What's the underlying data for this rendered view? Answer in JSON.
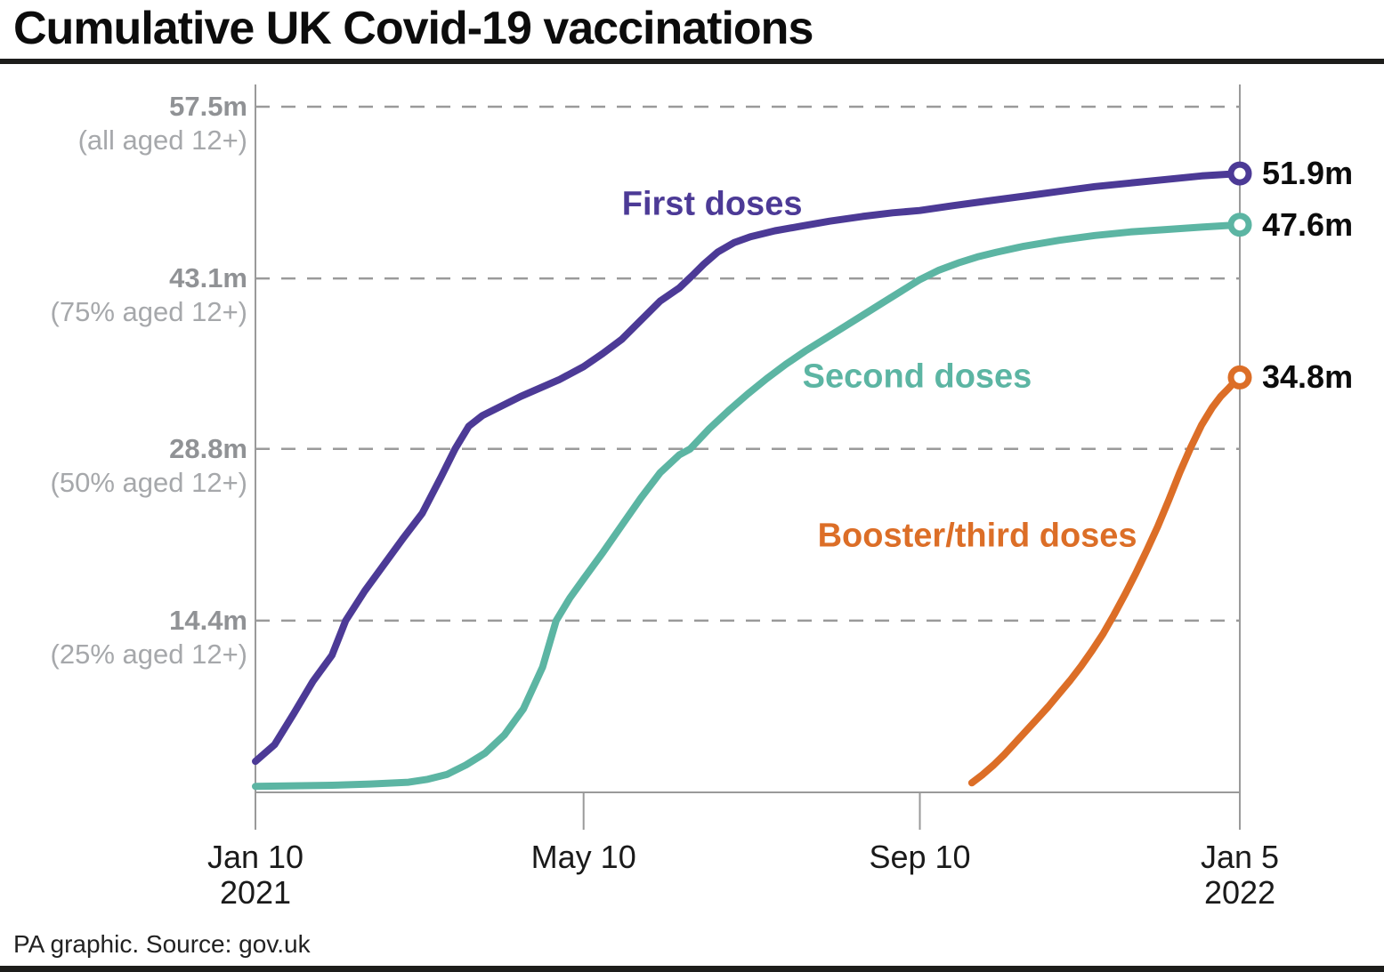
{
  "title": "Cumulative UK Covid-19 vaccinations",
  "footer": {
    "source_line": "PA graphic. Source: gov.uk"
  },
  "colors": {
    "first_doses": "#4c3a96",
    "second_doses": "#5cb5a3",
    "booster_doses": "#dc6e27",
    "grid_gray": "#9a9a9a",
    "label_gray": "#909295",
    "text_black": "#0c0c0c"
  },
  "chart_data": {
    "type": "line",
    "title": "Cumulative UK Covid-19 vaccinations",
    "xlabel": "",
    "ylabel": "",
    "x_axis": {
      "unit": "days since 2021-01-10",
      "max_day": 360,
      "ticks": [
        {
          "day": 0,
          "label": "Jan 10",
          "sublabel": "2021"
        },
        {
          "day": 120,
          "label": "May 10",
          "sublabel": ""
        },
        {
          "day": 243,
          "label": "Sep 10",
          "sublabel": ""
        },
        {
          "day": 360,
          "label": "Jan 5",
          "sublabel": "2022"
        }
      ]
    },
    "y_axis": {
      "unit": "millions of doses",
      "max": 57.5,
      "grid": "dashed",
      "gridlines": [
        {
          "value": 57.5,
          "label": "57.5m",
          "sublabel": "(all aged 12+)"
        },
        {
          "value": 43.1,
          "label": "43.1m",
          "sublabel": "(75% aged 12+)"
        },
        {
          "value": 28.8,
          "label": "28.8m",
          "sublabel": "(50% aged 12+)"
        },
        {
          "value": 14.4,
          "label": "14.4m",
          "sublabel": "(25% aged 12+)"
        }
      ]
    },
    "legend": "inline-labels",
    "series": [
      {
        "id": "first-doses",
        "label": "First doses",
        "color": "#4c3a96",
        "end_label": "51.9m",
        "final_value": 51.9,
        "label_anchor": {
          "day": 167,
          "value": 49.3
        },
        "points": [
          [
            0,
            2.6
          ],
          [
            7,
            4.0
          ],
          [
            14,
            6.6
          ],
          [
            21,
            9.3
          ],
          [
            28,
            11.5
          ],
          [
            33,
            14.4
          ],
          [
            40,
            16.9
          ],
          [
            47,
            19.1
          ],
          [
            54,
            21.3
          ],
          [
            61,
            23.4
          ],
          [
            68,
            26.5
          ],
          [
            73,
            28.8
          ],
          [
            78,
            30.7
          ],
          [
            83,
            31.6
          ],
          [
            90,
            32.4
          ],
          [
            97,
            33.2
          ],
          [
            104,
            33.9
          ],
          [
            111,
            34.6
          ],
          [
            120,
            35.7
          ],
          [
            127,
            36.8
          ],
          [
            134,
            38.0
          ],
          [
            141,
            39.6
          ],
          [
            148,
            41.2
          ],
          [
            155,
            42.3
          ],
          [
            160,
            43.4
          ],
          [
            164,
            44.3
          ],
          [
            169,
            45.3
          ],
          [
            175,
            46.1
          ],
          [
            181,
            46.6
          ],
          [
            190,
            47.1
          ],
          [
            200,
            47.5
          ],
          [
            210,
            47.9
          ],
          [
            222,
            48.3
          ],
          [
            233,
            48.6
          ],
          [
            243,
            48.8
          ],
          [
            255,
            49.2
          ],
          [
            268,
            49.6
          ],
          [
            281,
            50.0
          ],
          [
            294,
            50.4
          ],
          [
            307,
            50.8
          ],
          [
            320,
            51.1
          ],
          [
            333,
            51.4
          ],
          [
            346,
            51.7
          ],
          [
            360,
            51.9
          ]
        ]
      },
      {
        "id": "second-doses",
        "label": "Second doses",
        "color": "#5cb5a3",
        "end_label": "47.6m",
        "final_value": 47.6,
        "label_anchor": {
          "day": 242,
          "value": 34.8
        },
        "points": [
          [
            0,
            0.5
          ],
          [
            14,
            0.55
          ],
          [
            28,
            0.6
          ],
          [
            42,
            0.7
          ],
          [
            56,
            0.85
          ],
          [
            63,
            1.1
          ],
          [
            70,
            1.5
          ],
          [
            77,
            2.3
          ],
          [
            84,
            3.3
          ],
          [
            91,
            4.8
          ],
          [
            98,
            7.0
          ],
          [
            105,
            10.5
          ],
          [
            110,
            14.4
          ],
          [
            115,
            16.3
          ],
          [
            120,
            17.9
          ],
          [
            127,
            20.1
          ],
          [
            134,
            22.4
          ],
          [
            141,
            24.7
          ],
          [
            148,
            26.8
          ],
          [
            155,
            28.3
          ],
          [
            159,
            28.8
          ],
          [
            166,
            30.5
          ],
          [
            173,
            32.0
          ],
          [
            180,
            33.4
          ],
          [
            187,
            34.7
          ],
          [
            194,
            35.9
          ],
          [
            201,
            37.0
          ],
          [
            208,
            38.0
          ],
          [
            215,
            39.0
          ],
          [
            222,
            40.0
          ],
          [
            229,
            41.0
          ],
          [
            236,
            42.0
          ],
          [
            243,
            43.0
          ],
          [
            250,
            43.8
          ],
          [
            257,
            44.4
          ],
          [
            264,
            44.9
          ],
          [
            271,
            45.3
          ],
          [
            281,
            45.8
          ],
          [
            294,
            46.3
          ],
          [
            307,
            46.7
          ],
          [
            320,
            47.0
          ],
          [
            333,
            47.2
          ],
          [
            346,
            47.4
          ],
          [
            360,
            47.6
          ]
        ]
      },
      {
        "id": "booster-doses",
        "label": "Booster/third doses",
        "color": "#dc6e27",
        "end_label": "34.8m",
        "final_value": 34.8,
        "label_anchor": {
          "day": 264,
          "value": 21.5
        },
        "points": [
          [
            262,
            0.8
          ],
          [
            266,
            1.5
          ],
          [
            270,
            2.3
          ],
          [
            274,
            3.2
          ],
          [
            278,
            4.2
          ],
          [
            282,
            5.2
          ],
          [
            286,
            6.2
          ],
          [
            290,
            7.2
          ],
          [
            294,
            8.3
          ],
          [
            298,
            9.4
          ],
          [
            302,
            10.6
          ],
          [
            306,
            11.9
          ],
          [
            310,
            13.3
          ],
          [
            314,
            14.9
          ],
          [
            318,
            16.6
          ],
          [
            322,
            18.4
          ],
          [
            326,
            20.3
          ],
          [
            330,
            22.3
          ],
          [
            334,
            24.5
          ],
          [
            338,
            26.8
          ],
          [
            342,
            28.9
          ],
          [
            346,
            30.8
          ],
          [
            350,
            32.3
          ],
          [
            353,
            33.2
          ],
          [
            356,
            33.9
          ],
          [
            358,
            34.4
          ],
          [
            360,
            34.8
          ]
        ]
      }
    ]
  }
}
